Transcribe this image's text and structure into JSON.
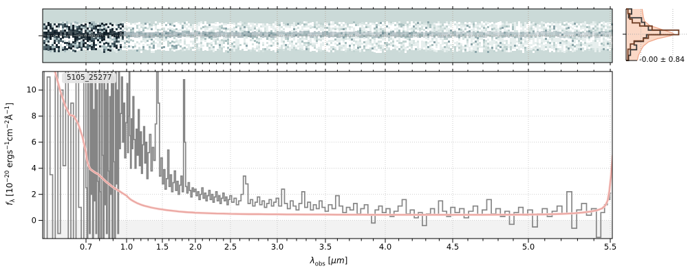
{
  "figure": {
    "source_label": "5105_25277",
    "residual_stat": "-0.00 ± 0.84"
  },
  "colors": {
    "flux_line": "#858585",
    "error_line": "#e89f9a",
    "error_halo": "#f7cdc9",
    "cutout_background": "#cbdad8",
    "cutout_grid": "#b3a596",
    "main_grid": "#c8c8c8",
    "below_zero_band": "#f2f2f2",
    "hist_model": "#6f3d24",
    "hist_data": "#3a3a3a",
    "hist_gauss_fill": "#fbd8c6",
    "hist_gauss_edge": "#f0a486",
    "spine": "#000000"
  },
  "axis": {
    "x_tick_labels": [
      "0.7",
      "1.0",
      "1.5",
      "2.0",
      "2.5",
      "3.0",
      "3.5",
      "4.0",
      "4.5",
      "5.0",
      "5.5"
    ],
    "x_tick_values": [
      0.7,
      1.0,
      1.5,
      2.0,
      2.5,
      3.0,
      3.5,
      4.0,
      4.5,
      5.0,
      5.5
    ],
    "y_tick_labels": [
      "0",
      "2",
      "4",
      "6",
      "8",
      "10"
    ],
    "y_tick_values": [
      0,
      2,
      4,
      6,
      8,
      10
    ],
    "xlabel_parts": [
      [
        "λ",
        "it"
      ],
      [
        "obs",
        "sub"
      ],
      [
        " [",
        ""
      ],
      [
        "μ",
        "it"
      ],
      [
        "m",
        "it"
      ],
      [
        "]",
        ""
      ]
    ],
    "ylabel_parts": [
      [
        "f",
        "it"
      ],
      [
        "λ",
        "sub"
      ],
      [
        " [10",
        ""
      ],
      [
        "−20",
        "sup"
      ],
      [
        " ergs",
        ""
      ],
      [
        "−1",
        "sup"
      ],
      [
        "cm",
        ""
      ],
      [
        "−2",
        "sup"
      ],
      [
        "Å",
        ""
      ],
      [
        "−1",
        "sup"
      ],
      [
        "]",
        ""
      ]
    ]
  },
  "chart_data": [
    {
      "type": "heatmap",
      "name": "spectrum-2d-cutout",
      "description": "2D rectified spectrum cutout; speckled noise band with dark source trace along the center row; noise and trace darkest at short wavelengths",
      "x_range_um": [
        0.6,
        5.52
      ],
      "background": "#cbdad8",
      "trace_center_frac": 0.5,
      "grid_wavelengths": [
        0.7,
        1.0,
        1.5,
        2.0,
        2.5,
        3.0,
        3.5,
        4.0,
        4.5,
        5.0,
        5.5
      ]
    },
    {
      "type": "line",
      "name": "spectrum-1d",
      "title": "5105_25277",
      "xlabel": "lambda_obs [micron]",
      "ylabel": "f_lambda [1e-20 erg/s/cm2/A]",
      "xlim": [
        0.6,
        5.52
      ],
      "ylim": [
        -1.4,
        11.4
      ],
      "x_ticks": [
        0.7,
        1.0,
        1.5,
        2.0,
        2.5,
        3.0,
        3.5,
        4.0,
        4.5,
        5.0,
        5.5
      ],
      "y_ticks": [
        0,
        2,
        4,
        6,
        8,
        10
      ],
      "grid": true,
      "shaded_below_zero": true,
      "series": [
        {
          "name": "flux",
          "style": "steps-mid",
          "color": "#858585",
          "x": [
            0.6,
            0.607,
            0.614,
            0.62,
            0.626,
            0.632,
            0.638,
            0.644,
            0.65,
            0.656,
            0.662,
            0.668,
            0.674,
            0.68,
            0.686,
            0.692,
            0.698,
            0.704,
            0.71,
            0.716,
            0.722,
            0.728,
            0.734,
            0.74,
            0.746,
            0.752,
            0.758,
            0.764,
            0.77,
            0.776,
            0.782,
            0.788,
            0.794,
            0.8,
            0.806,
            0.812,
            0.818,
            0.824,
            0.83,
            0.836,
            0.842,
            0.848,
            0.854,
            0.86,
            0.866,
            0.872,
            0.878,
            0.884,
            0.89,
            0.896,
            0.902,
            0.908,
            0.914,
            0.92,
            0.926,
            0.932,
            0.938,
            0.944,
            0.95,
            0.958,
            0.966,
            0.974,
            0.982,
            0.99,
            1.0,
            1.01,
            1.02,
            1.03,
            1.04,
            1.05,
            1.06,
            1.07,
            1.08,
            1.095,
            1.11,
            1.125,
            1.14,
            1.155,
            1.17,
            1.185,
            1.2,
            1.215,
            1.23,
            1.245,
            1.26,
            1.275,
            1.29,
            1.31,
            1.33,
            1.35,
            1.37,
            1.39,
            1.41,
            1.43,
            1.45,
            1.47,
            1.49,
            1.51,
            1.53,
            1.55,
            1.57,
            1.59,
            1.61,
            1.63,
            1.65,
            1.67,
            1.69,
            1.71,
            1.73,
            1.75,
            1.77,
            1.79,
            1.81,
            1.83,
            1.845,
            1.86,
            1.88,
            1.9,
            1.92,
            1.94,
            1.96,
            1.98,
            2.0,
            2.02,
            2.04,
            2.06,
            2.08,
            2.1,
            2.12,
            2.14,
            2.16,
            2.18,
            2.2,
            2.22,
            2.24,
            2.26,
            2.28,
            2.3,
            2.32,
            2.34,
            2.36,
            2.38,
            2.4,
            2.42,
            2.44,
            2.46,
            2.48,
            2.5,
            2.525,
            2.55,
            2.575,
            2.6,
            2.625,
            2.65,
            2.675,
            2.7,
            2.725,
            2.75,
            2.775,
            2.8,
            2.825,
            2.85,
            2.875,
            2.9,
            2.925,
            2.95,
            2.975,
            3.0,
            3.03,
            3.06,
            3.09,
            3.12,
            3.15,
            3.18,
            3.21,
            3.24,
            3.27,
            3.3,
            3.33,
            3.36,
            3.39,
            3.42,
            3.45,
            3.48,
            3.51,
            3.54,
            3.57,
            3.6,
            3.63,
            3.66,
            3.69,
            3.72,
            3.75,
            3.78,
            3.81,
            3.84,
            3.87,
            3.9,
            3.93,
            3.96,
            3.99,
            4.02,
            4.05,
            4.08,
            4.11,
            4.14,
            4.17,
            4.2,
            4.23,
            4.26,
            4.29,
            4.32,
            4.35,
            4.38,
            4.41,
            4.44,
            4.47,
            4.5,
            4.53,
            4.56,
            4.59,
            4.62,
            4.65,
            4.68,
            4.71,
            4.74,
            4.77,
            4.8,
            4.83,
            4.86,
            4.89,
            4.92,
            4.95,
            4.98,
            5.01,
            5.04,
            5.07,
            5.1,
            5.13,
            5.16,
            5.19,
            5.22,
            5.25,
            5.28,
            5.31,
            5.34,
            5.37,
            5.4,
            5.43,
            5.455,
            5.475,
            5.49,
            5.505
          ],
          "y": [
            12,
            -2,
            11,
            3.5,
            -2,
            12,
            -1,
            10,
            4.2,
            12,
            -2,
            9,
            -1.5,
            12,
            1.0,
            -2,
            11,
            2.5,
            -2,
            12,
            4.0,
            -1,
            11,
            2.0,
            12,
            -2,
            8.5,
            1.5,
            12,
            -1,
            10,
            3.0,
            -2,
            12,
            2.2,
            -1.5,
            11,
            5.0,
            -2,
            12,
            1.2,
            10,
            -1,
            12,
            3.8,
            -2,
            9.5,
            2.0,
            12,
            -1.5,
            11,
            4.5,
            -2,
            12,
            2.8,
            10,
            -1,
            11.5,
            5.5,
            8.2,
            11,
            6.0,
            9.0,
            4.8,
            7.5,
            10.5,
            5.2,
            8.0,
            12,
            6.5,
            4.0,
            7.8,
            5.5,
            9.5,
            6.2,
            4.0,
            7.0,
            5.0,
            8.5,
            4.2,
            6.8,
            3.6,
            5.8,
            7.2,
            4.4,
            6.0,
            3.2,
            5.2,
            6.6,
            3.8,
            5.6,
            4.6,
            7.4,
            12,
            9.0,
            3.4,
            4.8,
            2.8,
            3.9,
            2.4,
            3.2,
            5.4,
            2.6,
            3.5,
            2.2,
            2.9,
            3.8,
            2.3,
            3.0,
            2.0,
            2.7,
            3.4,
            2.2,
            10.8,
            6.0,
            2.6,
            2.1,
            2.9,
            2.3,
            1.8,
            2.5,
            2.2,
            2.4,
            1.9,
            2.2,
            1.6,
            2.0,
            2.5,
            1.7,
            2.1,
            1.5,
            1.9,
            2.3,
            1.6,
            2.0,
            1.4,
            1.8,
            2.2,
            1.5,
            1.9,
            1.3,
            1.7,
            2.1,
            1.5,
            1.8,
            1.2,
            1.6,
            1.9,
            1.4,
            1.7,
            1.2,
            1.5,
            2.0,
            3.4,
            2.8,
            1.3,
            1.6,
            1.1,
            1.4,
            1.8,
            1.2,
            1.5,
            1.0,
            1.3,
            1.6,
            1.1,
            1.4,
            1.7,
            1.1,
            2.4,
            1.3,
            0.9,
            1.5,
            1.1,
            0.8,
            1.3,
            2.2,
            1.0,
            1.4,
            0.8,
            1.2,
            0.9,
            1.5,
            1.0,
            0.7,
            1.2,
            0.9,
            1.9,
            1.1,
            0.6,
            1.0,
            0.8,
            1.3,
            0.5,
            0.9,
            1.2,
            0.4,
            -0.2,
            0.8,
            1.1,
            0.6,
            0.9,
            0.3,
            0.7,
            1.1,
            1.6,
            0.5,
            0.8,
            0.2,
            0.6,
            -0.4,
            0.5,
            0.9,
            0.4,
            1.5,
            0.7,
            0.3,
            1.0,
            0.6,
            0.9,
            0.2,
            0.7,
            1.1,
            0.4,
            0.8,
            1.6,
            0.5,
            0.9,
            0.3,
            0.7,
            -0.3,
            0.6,
            1.0,
            0.4,
            0.8,
            -0.5,
            0.5,
            0.9,
            0.3,
            0.7,
            1.1,
            0.5,
            2.2,
            -0.6,
            0.8,
            1.3,
            0.4,
            0.9,
            -1.3,
            0.6,
            1.2,
            1.6,
            2.1
          ]
        },
        {
          "name": "error",
          "style": "line",
          "color": "#e89f9a",
          "x": [
            0.6,
            0.615,
            0.628,
            0.64,
            0.652,
            0.662,
            0.672,
            0.682,
            0.692,
            0.7,
            0.706,
            0.715,
            0.73,
            0.75,
            0.77,
            0.79,
            0.81,
            0.83,
            0.85,
            0.87,
            0.89,
            0.91,
            0.93,
            0.95,
            0.975,
            1.0,
            1.025,
            1.05,
            1.075,
            1.1,
            1.15,
            1.2,
            1.25,
            1.3,
            1.35,
            1.4,
            1.45,
            1.5,
            1.55,
            1.6,
            1.65,
            1.7,
            1.75,
            1.8,
            1.85,
            1.9,
            1.95,
            2.0,
            2.1,
            2.2,
            2.3,
            2.4,
            2.5,
            2.6,
            2.7,
            2.8,
            2.9,
            3.0,
            3.1,
            3.2,
            3.3,
            3.4,
            3.5,
            3.6,
            3.7,
            3.8,
            3.9,
            4.0,
            4.1,
            4.2,
            4.3,
            4.4,
            4.5,
            4.6,
            4.7,
            4.8,
            4.9,
            5.0,
            5.08,
            5.15,
            5.22,
            5.28,
            5.33,
            5.38,
            5.42,
            5.45,
            5.47,
            5.485,
            5.495,
            5.505,
            5.515
          ],
          "y": [
            14,
            13,
            11.5,
            10,
            8.8,
            8.1,
            8.0,
            7.4,
            6.4,
            5.2,
            4.7,
            4.3,
            3.95,
            3.8,
            3.65,
            3.55,
            3.35,
            3.15,
            2.95,
            2.8,
            2.62,
            2.48,
            2.35,
            2.22,
            2.05,
            1.9,
            1.75,
            1.63,
            1.54,
            1.46,
            1.32,
            1.21,
            1.12,
            1.05,
            0.98,
            0.93,
            0.88,
            0.84,
            0.8,
            0.77,
            0.74,
            0.71,
            0.68,
            0.66,
            0.64,
            0.62,
            0.61,
            0.59,
            0.57,
            0.55,
            0.53,
            0.52,
            0.5,
            0.49,
            0.48,
            0.48,
            0.47,
            0.47,
            0.46,
            0.46,
            0.45,
            0.45,
            0.45,
            0.44,
            0.44,
            0.44,
            0.43,
            0.43,
            0.43,
            0.43,
            0.43,
            0.43,
            0.43,
            0.43,
            0.43,
            0.44,
            0.44,
            0.45,
            0.46,
            0.48,
            0.51,
            0.55,
            0.6,
            0.68,
            0.78,
            0.92,
            1.15,
            1.55,
            2.3,
            3.5,
            5.0
          ]
        }
      ]
    },
    {
      "type": "histogram",
      "name": "residual-histogram",
      "orientation": "horizontal",
      "annotation": "-0.00 ± 0.84",
      "mean": -0.0,
      "sigma": 0.84,
      "series": [
        {
          "name": "gaussian-reference",
          "fill": "#fbd8c6",
          "edge": "#f0a486",
          "profile": [
            [
              0.0,
              0.26
            ],
            [
              0.08,
              0.27
            ],
            [
              0.16,
              0.28
            ],
            [
              0.24,
              0.3
            ],
            [
              0.32,
              0.38
            ],
            [
              0.4,
              0.58
            ],
            [
              0.46,
              0.74
            ],
            [
              0.49,
              0.78
            ],
            [
              0.52,
              0.72
            ],
            [
              0.58,
              0.5
            ],
            [
              0.64,
              0.36
            ],
            [
              0.72,
              0.28
            ],
            [
              0.8,
              0.24
            ],
            [
              0.9,
              0.2
            ],
            [
              1.0,
              0.18
            ]
          ]
        },
        {
          "name": "residual-counts",
          "color": "#3a3a3a",
          "steps": [
            [
              0.0,
              0.1,
              0.09
            ],
            [
              0.1,
              0.17,
              0.04
            ],
            [
              0.17,
              0.26,
              0.25
            ],
            [
              0.26,
              0.33,
              0.3
            ],
            [
              0.33,
              0.41,
              0.36
            ],
            [
              0.41,
              0.5,
              0.55
            ],
            [
              0.5,
              0.56,
              0.33
            ],
            [
              0.56,
              0.63,
              0.28
            ],
            [
              0.63,
              0.7,
              0.13
            ],
            [
              0.7,
              0.79,
              0.17
            ],
            [
              0.79,
              0.9,
              0.07
            ],
            [
              0.9,
              1.0,
              0.04
            ]
          ]
        },
        {
          "name": "model-counts",
          "color": "#6f3d24",
          "steps": [
            [
              0.0,
              0.09,
              0.03
            ],
            [
              0.09,
              0.2,
              0.06
            ],
            [
              0.2,
              0.27,
              0.1
            ],
            [
              0.27,
              0.33,
              0.22
            ],
            [
              0.33,
              0.41,
              0.42
            ],
            [
              0.41,
              0.5,
              0.85
            ],
            [
              0.5,
              0.57,
              0.36
            ],
            [
              0.57,
              0.62,
              0.28
            ],
            [
              0.62,
              0.68,
              0.13
            ],
            [
              0.68,
              0.78,
              0.07
            ],
            [
              0.78,
              1.0,
              0.03
            ]
          ]
        }
      ],
      "gridlines": {
        "vertical_frac": [
          0.24,
          0.755
        ],
        "horizontal_frac": [
          0.49
        ]
      }
    }
  ]
}
